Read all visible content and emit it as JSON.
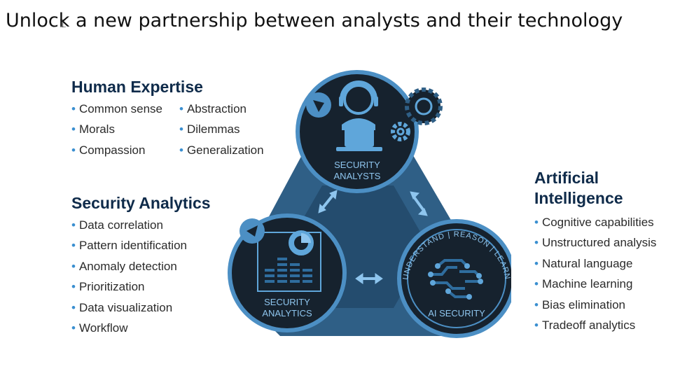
{
  "title": "Unlock a new partnership between analysts and their technology",
  "human_expertise": {
    "heading": "Human Expertise",
    "left_items": [
      "Common sense",
      "Morals",
      "Compassion"
    ],
    "right_items": [
      "Abstraction",
      "Dilemmas",
      "Generalization"
    ]
  },
  "security_analytics": {
    "heading": "Security Analytics",
    "items": [
      "Data correlation",
      "Pattern identification",
      "Anomaly detection",
      "Prioritization",
      "Data visualization",
      "Workflow"
    ]
  },
  "artificial_intelligence": {
    "heading_line1": "Artificial",
    "heading_line2": "Intelligence",
    "items": [
      "Cognitive capabilities",
      "Unstructured analysis",
      "Natural language",
      "Machine learning",
      "Bias elimination",
      "Tradeoff analytics"
    ]
  },
  "diagram": {
    "top_circle": {
      "line1": "SECURITY",
      "line2": "ANALYSTS"
    },
    "left_circle": {
      "line1": "SECURITY",
      "line2": "ANALYTICS"
    },
    "right_circle": {
      "label": "AI SECURITY",
      "arc_text": "UNDERSTAND | REASON | LEARN"
    }
  },
  "colors": {
    "navy": "#0f2b4a",
    "circle_dark": "#16222e",
    "triangle": "#2f5f86",
    "triangle_dark": "#244c6e",
    "accent": "#5fa6da",
    "label_blue": "#8ec5ee",
    "bullet": "#3a8fd0"
  }
}
